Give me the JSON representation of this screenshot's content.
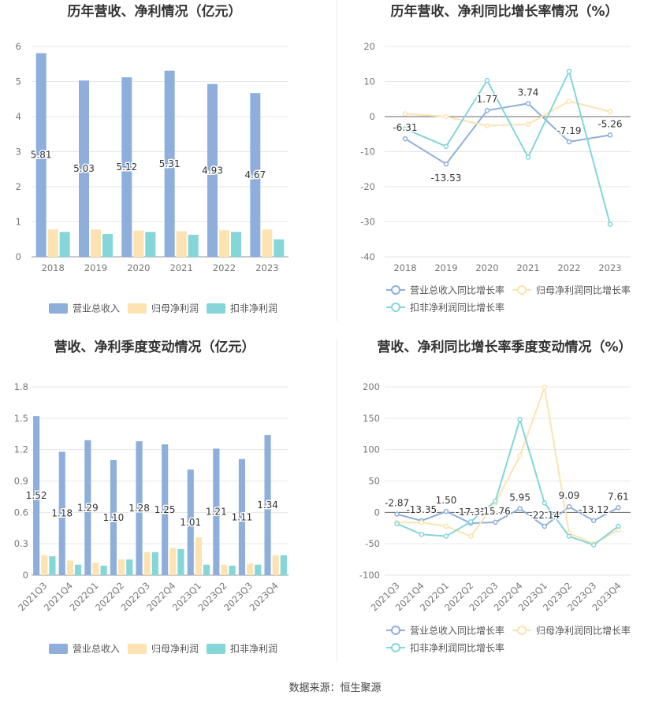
{
  "footer": {
    "source": "数据来源：恒生聚源"
  },
  "chart_data": [
    {
      "id": "annual-bars",
      "type": "bar",
      "title": "历年营收、净利情况（亿元）",
      "categories": [
        "2018",
        "2019",
        "2020",
        "2021",
        "2022",
        "2023"
      ],
      "ylim": [
        0,
        6
      ],
      "yticks": [
        0,
        1,
        2,
        3,
        4,
        5,
        6
      ],
      "grid": true,
      "legend": "bottom",
      "series": [
        {
          "name": "营业总收入",
          "color": "#8eaedc",
          "values": [
            5.81,
            5.03,
            5.12,
            5.31,
            4.93,
            4.67
          ],
          "labels": [
            "5.81",
            "5.03",
            "5.12",
            "5.31",
            "4.93",
            "4.67"
          ]
        },
        {
          "name": "归母净利润",
          "color": "#fde3b1",
          "values": [
            0.78,
            0.78,
            0.75,
            0.73,
            0.76,
            0.78
          ]
        },
        {
          "name": "扣非净利润",
          "color": "#84d6d9",
          "values": [
            0.71,
            0.65,
            0.71,
            0.63,
            0.71,
            0.5
          ]
        }
      ]
    },
    {
      "id": "annual-lines",
      "type": "line",
      "title": "历年营收、净利同比增长率情况（%）",
      "categories": [
        "2018",
        "2019",
        "2020",
        "2021",
        "2022",
        "2023"
      ],
      "ylim": [
        -40,
        20
      ],
      "yticks": [
        -40,
        -30,
        -20,
        -10,
        0,
        10,
        20
      ],
      "grid": true,
      "legend": "bottom",
      "series": [
        {
          "name": "营业总收入同比增长率",
          "color": "#8eaedc",
          "values": [
            -6.31,
            -13.53,
            1.77,
            3.74,
            -7.19,
            -5.26
          ],
          "labels": [
            "-6.31",
            "-13.53",
            "1.77",
            "3.74",
            "-7.19",
            "-5.26"
          ]
        },
        {
          "name": "归母净利润同比增长率",
          "color": "#fde3b1",
          "values": [
            0.8,
            0.0,
            -2.6,
            -2.2,
            4.4,
            1.4
          ]
        },
        {
          "name": "扣非净利润同比增长率",
          "color": "#84d6d9",
          "values": [
            -3.5,
            -8.5,
            10.3,
            -11.6,
            12.9,
            -30.7
          ]
        }
      ]
    },
    {
      "id": "quarterly-bars",
      "type": "bar",
      "title": "营收、净利季度变动情况（亿元）",
      "categories": [
        "2021Q3",
        "2021Q4",
        "2022Q1",
        "2022Q2",
        "2022Q3",
        "2022Q4",
        "2023Q1",
        "2023Q2",
        "2023Q3",
        "2023Q4"
      ],
      "ylim": [
        0,
        1.8
      ],
      "yticks": [
        "0",
        "0.3",
        "0.6",
        "0.9",
        "1.2",
        "1.5",
        "1.8"
      ],
      "grid": true,
      "legend": "bottom",
      "series": [
        {
          "name": "营业总收入",
          "color": "#8eaedc",
          "values": [
            1.52,
            1.18,
            1.29,
            1.1,
            1.28,
            1.25,
            1.01,
            1.21,
            1.11,
            1.34
          ],
          "labels": [
            "1.52",
            "1.18",
            "1.29",
            "1.10",
            "1.28",
            "1.25",
            "1.01",
            "1.21",
            "1.11",
            "1.34"
          ]
        },
        {
          "name": "归母净利润",
          "color": "#fde3b1",
          "values": [
            0.19,
            0.14,
            0.12,
            0.15,
            0.22,
            0.26,
            0.36,
            0.1,
            0.11,
            0.19
          ]
        },
        {
          "name": "扣非净利润",
          "color": "#84d6d9",
          "values": [
            0.18,
            0.1,
            0.09,
            0.15,
            0.22,
            0.25,
            0.1,
            0.09,
            0.1,
            0.19
          ]
        }
      ]
    },
    {
      "id": "quarterly-lines",
      "type": "line",
      "title": "营收、净利同比增长率季度变动情况（%）",
      "categories": [
        "2021Q3",
        "2021Q4",
        "2022Q1",
        "2022Q2",
        "2022Q3",
        "2022Q4",
        "2023Q1",
        "2023Q2",
        "2023Q3",
        "2023Q4"
      ],
      "ylim": [
        -100,
        200
      ],
      "yticks": [
        -100,
        -50,
        0,
        50,
        100,
        150,
        200
      ],
      "grid": true,
      "legend": "bottom",
      "series": [
        {
          "name": "营业总收入同比增长率",
          "color": "#8eaedc",
          "values": [
            -2.87,
            -13.35,
            1.5,
            -17.31,
            -15.76,
            5.95,
            -22.14,
            9.09,
            -13.12,
            7.61
          ],
          "labels": [
            "-2.87",
            "-13.35",
            "1.50",
            "-17.31",
            "-15.76",
            "5.95",
            "-22.14",
            "9.09",
            "-13.12",
            "7.61"
          ]
        },
        {
          "name": "归母净利润同比增长率",
          "color": "#fde3b1",
          "values": [
            -16,
            -16,
            -22,
            -38,
            15,
            90,
            199,
            -33,
            -50,
            -28
          ]
        },
        {
          "name": "扣非净利润同比增长率",
          "color": "#84d6d9",
          "values": [
            -18,
            -35,
            -38,
            -15,
            18,
            148,
            15,
            -38,
            -52,
            -22
          ]
        }
      ]
    }
  ]
}
